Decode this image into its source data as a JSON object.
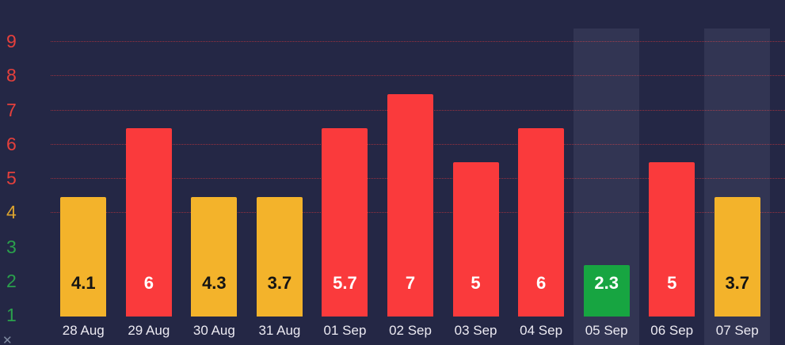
{
  "chart_data": {
    "type": "bar",
    "title": "",
    "xlabel": "",
    "ylabel": "",
    "legend": "none",
    "grid": "dotted-red-horizontal",
    "ylim": [
      1,
      9.5
    ],
    "categories": [
      "28 Aug",
      "29 Aug",
      "30 Aug",
      "31 Aug",
      "01 Sep",
      "02 Sep",
      "03 Sep",
      "04 Sep",
      "05 Sep",
      "06 Sep",
      "07 Sep"
    ],
    "values": [
      4.1,
      6,
      4.3,
      3.7,
      5.7,
      7,
      5,
      6,
      2.3,
      5,
      3.7
    ],
    "value_labels": [
      "4.1",
      "6",
      "4.3",
      "3.7",
      "5.7",
      "7",
      "5",
      "6",
      "2.3",
      "5",
      "3.7"
    ],
    "bar_colors": [
      "yellow",
      "red",
      "yellow",
      "yellow",
      "red",
      "red",
      "red",
      "red",
      "green",
      "red",
      "yellow"
    ],
    "highlighted_indices": [
      8,
      10
    ],
    "highlighted_columns": [
      "05 Sep",
      "07 Sep"
    ],
    "y_ticks": [
      {
        "value": 1,
        "color_key": "green"
      },
      {
        "value": 2,
        "color_key": "green"
      },
      {
        "value": 3,
        "color_key": "green"
      },
      {
        "value": 4,
        "color_key": "yellow"
      },
      {
        "value": 5,
        "color_key": "red"
      },
      {
        "value": 6,
        "color_key": "red"
      },
      {
        "value": 7,
        "color_key": "red"
      },
      {
        "value": 8,
        "color_key": "red"
      },
      {
        "value": 9,
        "color_key": "red"
      }
    ],
    "gridline_values": [
      4,
      5,
      6,
      7,
      8,
      9
    ]
  },
  "palette": {
    "background": "#242745",
    "highlight_band": "rgba(221,228,255,0.08)",
    "bar_red": "#fa3a3c",
    "bar_yellow": "#f3b32b",
    "bar_green": "#17a541",
    "tick_red": "#e5403c",
    "tick_yellow": "#dba32e",
    "tick_green": "#2aa14c",
    "gridline": "rgba(248,58,58,0.55)",
    "x_label_color": "#eceaf2",
    "value_label_on_yellow": "#141414",
    "value_label_on_light": "#ffffff"
  },
  "corner_glyph": "✕"
}
